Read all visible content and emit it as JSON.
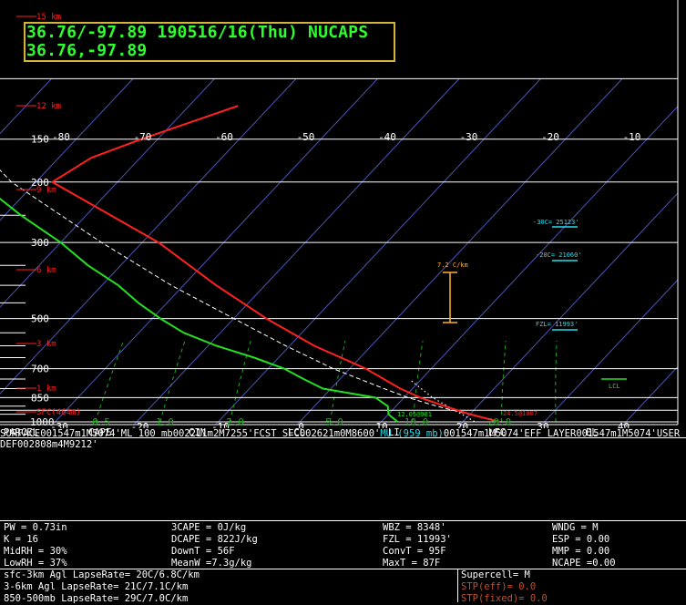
{
  "header": {
    "line1": "36.76/-97.89 190516/16(Thu) NUCAPS",
    "line2": "36.76,-97.89"
  },
  "colors": {
    "temperature": "#ff2020",
    "dewpoint": "#22e022",
    "isobar": "#ffffff",
    "isotherm": "#4a55b8",
    "mixing_ratio": "#1fa81f",
    "dry_adiabat": "#ffffff",
    "header_text": "#2cff2c",
    "header_border": "#d6b43a",
    "height_label": "#ff2020",
    "cyan": "#22e0ee",
    "bracket": "#ffb030",
    "mu_row": "#ffb030"
  },
  "chart_data": {
    "type": "line",
    "pressure_labels": [
      "150",
      "200",
      "300",
      "500",
      "700",
      "850",
      "1000"
    ],
    "height_labels": [
      "15 km",
      "12 km",
      "9 km",
      "6 km",
      "3 km",
      "1 km",
      "SFC(464m)"
    ],
    "top_temp_ticks": [
      "-80",
      "-70",
      "-60",
      "-50",
      "-40",
      "-30",
      "-20",
      "-10"
    ],
    "bottom_temp_ticks": [
      "-30",
      "-20",
      "-10",
      "0",
      "10",
      "20",
      "30",
      "40"
    ],
    "mixing_ratio_labels": [
      "0.5",
      "1.0",
      "2.0",
      "5.0",
      "10.0",
      "20.0"
    ],
    "markers": {
      "minus30": "-30C= 25123'",
      "minus20": "-20C= 21060'",
      "fzl": "FZL= 11993'",
      "lcl": "LCL",
      "lapse": "7.2 C/km",
      "sfc_dewpoint": "12.05@901",
      "sfc_temp": "24.5@1007"
    },
    "series": [
      {
        "name": "",
        "kind": "temperature",
        "points": [
          [
            1000,
            24.5
          ],
          [
            950,
            20
          ],
          [
            900,
            16
          ],
          [
            850,
            12
          ],
          [
            800,
            8.5
          ],
          [
            700,
            2
          ],
          [
            600,
            -7
          ],
          [
            500,
            -16
          ],
          [
            400,
            -26
          ],
          [
            300,
            -38
          ],
          [
            250,
            -47
          ],
          [
            200,
            -58
          ],
          [
            170,
            -56
          ],
          [
            150,
            -52
          ],
          [
            120,
            -44
          ]
        ]
      },
      {
        "name": "",
        "kind": "dewpoint",
        "points": [
          [
            1000,
            12
          ],
          [
            950,
            10
          ],
          [
            900,
            9
          ],
          [
            850,
            6.5
          ],
          [
            800,
            -1
          ],
          [
            750,
            -4.5
          ],
          [
            700,
            -8
          ],
          [
            650,
            -13
          ],
          [
            600,
            -19
          ],
          [
            550,
            -24.5
          ],
          [
            500,
            -29
          ],
          [
            450,
            -33.5
          ],
          [
            400,
            -38
          ],
          [
            350,
            -44
          ],
          [
            300,
            -50
          ],
          [
            250,
            -58
          ],
          [
            200,
            -67
          ],
          [
            150,
            -77
          ],
          [
            120,
            -86
          ]
        ]
      }
    ]
  },
  "table": {
    "headers": [
      "PARCEL",
      "CAPE",
      "CIN",
      "LCL",
      "LI",
      "LFC",
      "EL"
    ],
    "rows": [
      [
        "SURFACE",
        "0",
        "0",
        "1547m",
        "1",
        "M",
        "5074'"
      ],
      [
        "ML 100 mb",
        "0",
        "0",
        "2211m",
        "2",
        "M",
        "7255'"
      ],
      [
        "FCST SFC",
        "0",
        "0",
        "2621m",
        "0",
        "M",
        "8600'"
      ],
      [
        "MU (959 mb)",
        "0",
        "0",
        "1547m",
        "1",
        "M",
        "5074'"
      ],
      [
        "EFF LAYER",
        "0",
        "0",
        "1547m",
        "1",
        "M",
        "5074'"
      ],
      [
        "USER DEF",
        "0",
        "0",
        "2808m",
        "4",
        "M",
        "9212'"
      ]
    ]
  },
  "indices": {
    "pw": "PW = 0.73in",
    "k": "K = 16",
    "midrh": "MidRH = 30%",
    "lowrh": "LowRH = 37%",
    "cape3": "3CAPE = 0J/kg",
    "dcape": "DCAPE = 822J/kg",
    "downt": "DownT = 56F",
    "meanw": "MeanW =7.3g/kg",
    "wbz": "WBZ = 8348'",
    "fzl": "FZL = 11993'",
    "convt": "ConvT = 95F",
    "maxt": "MaxT = 87F",
    "wndg": "WNDG = M",
    "esp": "ESP = 0.00",
    "mmp": "MMP = 0.00",
    "ncape": "NCAPE =0.00"
  },
  "lapse": {
    "l1": "sfc-3km Agl LapseRate= 20C/6.8C/km",
    "l2": "3-6km Agl LapseRate= 21C/7.1C/km",
    "l3": "850-500mb LapseRate= 29C/7.0C/km"
  },
  "severe": {
    "supercell": "Supercell= M",
    "stp_eff": "STP(eff)= 0.0",
    "stp_fixed": "STP(fixed)= 0.0"
  }
}
